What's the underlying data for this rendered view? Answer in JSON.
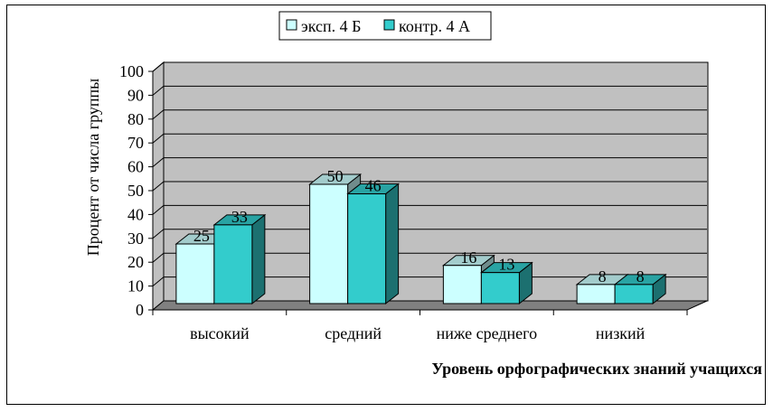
{
  "chart_data": {
    "type": "bar",
    "categories": [
      "высокий",
      "средний",
      "ниже среднего",
      "низкий"
    ],
    "series": [
      {
        "name": "эксп. 4 Б",
        "values": [
          25,
          50,
          16,
          8
        ],
        "color": "#CCFFFF"
      },
      {
        "name": "контр. 4 А",
        "values": [
          33,
          46,
          13,
          8
        ],
        "color": "#33CCCC"
      }
    ],
    "xlabel": "Уровень орфографических знаний учащихся",
    "ylabel": "Процент от числа группы",
    "ylim": [
      0,
      100
    ],
    "yticks": [
      0,
      10,
      20,
      30,
      40,
      50,
      60,
      70,
      80,
      90,
      100
    ],
    "grid": true,
    "legend": "top-center",
    "wall_color": "#C0C0C0",
    "floor_color": "#808080"
  }
}
